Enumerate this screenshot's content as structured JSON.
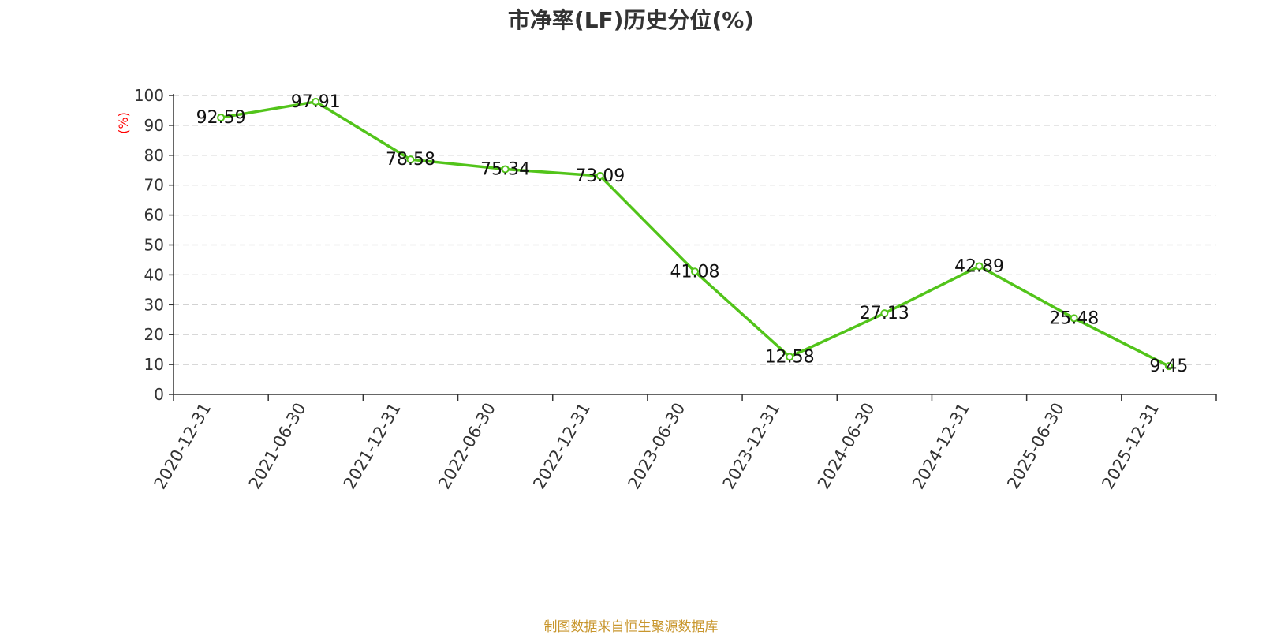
{
  "chart_data": {
    "type": "line",
    "title": "市净率(LF)历史分位(%)",
    "ylabel": "(%)",
    "xlabel": "",
    "categories": [
      "2020-12-31",
      "2021-06-30",
      "2021-12-31",
      "2022-06-30",
      "2022-12-31",
      "2023-06-30",
      "2023-12-31",
      "2024-06-30",
      "2024-12-31",
      "2025-06-30",
      "2025-12-31"
    ],
    "series": [
      {
        "values": [
          92.59,
          97.91,
          78.58,
          75.34,
          73.09,
          41.08,
          12.58,
          27.13,
          42.89,
          25.48,
          9.45
        ]
      }
    ],
    "data_labels": [
      "92.59",
      "97.91",
      "78.58",
      "75.34",
      "73.09",
      "41.08",
      "12.58",
      "27.13",
      "42.89",
      "25.48",
      "9.45"
    ],
    "ylim": [
      0,
      100
    ],
    "yticks": [
      0,
      10,
      20,
      30,
      40,
      50,
      60,
      70,
      80,
      90,
      100
    ],
    "grid": "horizontal dashed",
    "legend": "none",
    "colors": {
      "line": "#52c41a",
      "ylabel": "#ff0000",
      "source": "#c8962d",
      "title": "#333333"
    }
  },
  "footer": {
    "source": "制图数据来自恒生聚源数据库"
  }
}
